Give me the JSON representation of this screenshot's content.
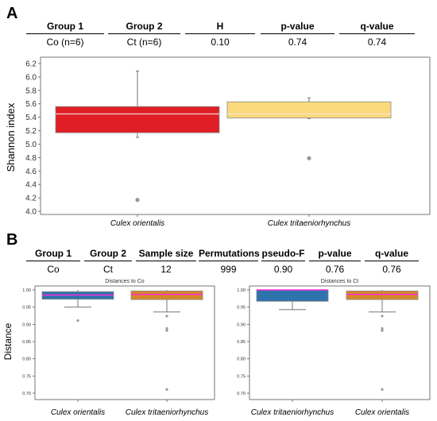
{
  "panel_a": {
    "letter": "A",
    "stats": {
      "headers": [
        "Group 1",
        "Group 2",
        "H",
        "p-value",
        "q-value"
      ],
      "values": [
        "Co (n=6)",
        "Ct (n=6)",
        "0.10",
        "0.74",
        "0.74"
      ]
    }
  },
  "panel_b": {
    "letter": "B",
    "stats": {
      "headers": [
        "Group 1",
        "Group 2",
        "Sample size",
        "Permutations",
        "pseudo-F",
        "p-value",
        "q-value"
      ],
      "values": [
        "Co",
        "Ct",
        "12",
        "999",
        "0.90",
        "0.76",
        "0.76"
      ]
    }
  },
  "colors": {
    "red_box": "#e01e25",
    "yellow_box": "#fcd97c",
    "blue_box": "#2f73ad",
    "orange_box": "#d4872a",
    "magenta_median": "#ff2bd6"
  },
  "chart_data": [
    {
      "type": "box",
      "ylabel": "Shannon index",
      "ylim": [
        4.0,
        6.2
      ],
      "yticks": [
        "4.0",
        "4.2",
        "4.4",
        "4.6",
        "4.8",
        "5.0",
        "5.2",
        "5.4",
        "5.6",
        "5.8",
        "6.0",
        "6.2"
      ],
      "categories": [
        "Culex orientalis",
        "Culex tritaeniorhynchus"
      ],
      "boxes": [
        {
          "min": 5.1,
          "q1": 5.17,
          "median": 5.45,
          "q3": 5.56,
          "max": 6.09,
          "outliers": [
            4.17
          ]
        },
        {
          "min": 5.38,
          "q1": 5.39,
          "median": 5.45,
          "q3": 5.63,
          "max": 5.69,
          "outliers": [
            4.79
          ]
        }
      ]
    },
    {
      "type": "box",
      "title": "Distances to Co",
      "ylabel": "Distance",
      "ylim": [
        0.7,
        1.0
      ],
      "yticks": [
        "0.70",
        "0.75",
        "0.80",
        "0.85",
        "0.90",
        "0.95",
        "1.00"
      ],
      "categories": [
        "Culex orientalis",
        "Culex tritaeniorhynchus"
      ],
      "boxes": [
        {
          "min": 0.95,
          "q1": 0.973,
          "median": 0.985,
          "q3": 0.995,
          "max": 1.0,
          "outliers": [
            0.911
          ]
        },
        {
          "min": 0.936,
          "q1": 0.972,
          "median": 0.987,
          "q3": 0.997,
          "max": 1.0,
          "outliers": [
            0.924,
            0.888,
            0.882,
            0.711
          ]
        }
      ]
    },
    {
      "type": "box",
      "title": "Distances to Ct",
      "ylabel": "",
      "ylim": [
        0.7,
        1.0
      ],
      "yticks": [
        "0.70",
        "0.75",
        "0.80",
        "0.85",
        "0.90",
        "0.95",
        "1.00"
      ],
      "categories": [
        "Culex tritaeniorhynchus",
        "Culex orientalis"
      ],
      "boxes": [
        {
          "min": 0.943,
          "q1": 0.967,
          "median": 1.0,
          "q3": 1.0,
          "max": 1.0,
          "outliers": []
        },
        {
          "min": 0.936,
          "q1": 0.972,
          "median": 0.987,
          "q3": 0.997,
          "max": 1.0,
          "outliers": [
            0.924,
            0.888,
            0.882,
            0.711
          ]
        }
      ]
    }
  ]
}
